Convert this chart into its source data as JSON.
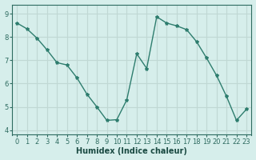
{
  "x": [
    0,
    1,
    2,
    3,
    4,
    5,
    6,
    7,
    8,
    9,
    10,
    11,
    12,
    13,
    14,
    15,
    16,
    17,
    18,
    19,
    20,
    21,
    22,
    23
  ],
  "y": [
    8.6,
    8.35,
    7.95,
    7.45,
    6.9,
    6.8,
    6.25,
    5.55,
    5.0,
    4.42,
    4.45,
    5.3,
    7.28,
    6.65,
    8.87,
    8.6,
    8.48,
    8.32,
    7.8,
    7.1,
    6.35,
    5.45,
    4.42,
    4.9
  ],
  "xlabel": "Humidex (Indice chaleur)",
  "line_color": "#2e7d6e",
  "marker": "*",
  "bg_color": "#d6eeeb",
  "grid_color": "#c0d8d4",
  "tick_label_color": "#2e6b60",
  "xlabel_color": "#1a4a42",
  "ylim": [
    3.8,
    9.4
  ],
  "xlim": [
    -0.5,
    23.5
  ],
  "yticks": [
    4,
    5,
    6,
    7,
    8,
    9
  ],
  "xticks": [
    0,
    1,
    2,
    3,
    4,
    5,
    6,
    7,
    8,
    9,
    10,
    11,
    12,
    13,
    14,
    15,
    16,
    17,
    18,
    19,
    20,
    21,
    22,
    23
  ]
}
